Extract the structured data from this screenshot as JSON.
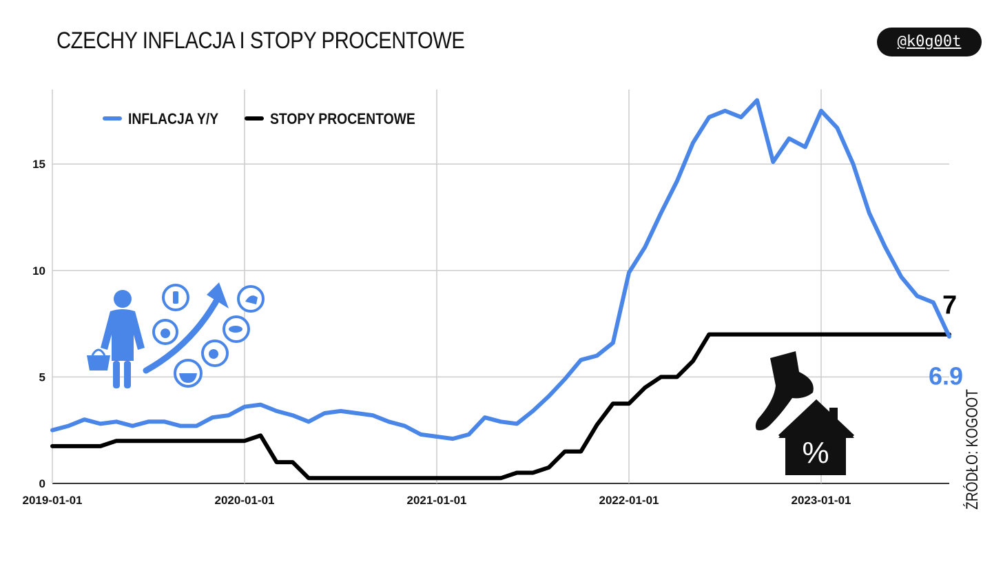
{
  "header": {
    "title": "CZECHY INFLACJA I STOPY PROCENTOWE",
    "handle": "@k0g00t",
    "source": "ŹRÓDŁO: KOGOOT"
  },
  "icons": {
    "shopper": "shopper-with-basket-icon",
    "rising_prices": "rising-food-prices-icon",
    "house": "house-percent-icon",
    "foot": "foot-icon"
  },
  "chart_data": {
    "type": "line",
    "title": "CZECHY INFLACJA I STOPY PROCENTOWE",
    "xlabel": "",
    "ylabel": "",
    "x_start": "2019-01",
    "x_step": "1 month",
    "x_ticks": [
      "2019-01-01",
      "2020-01-01",
      "2021-01-01",
      "2022-01-01",
      "2023-01-01"
    ],
    "y_ticks": [
      0,
      5,
      10,
      15
    ],
    "ylim": [
      0,
      18.5
    ],
    "grid": true,
    "legend_position": "top-left",
    "series": [
      {
        "name": "INFLACJA Y/Y",
        "color": "#4a86e8",
        "values": [
          2.5,
          2.7,
          3.0,
          2.8,
          2.9,
          2.7,
          2.9,
          2.9,
          2.7,
          2.7,
          3.1,
          3.2,
          3.6,
          3.7,
          3.4,
          3.2,
          2.9,
          3.3,
          3.4,
          3.3,
          3.2,
          2.9,
          2.7,
          2.3,
          2.2,
          2.1,
          2.3,
          3.1,
          2.9,
          2.8,
          3.4,
          4.1,
          4.9,
          5.8,
          6.0,
          6.6,
          9.9,
          11.1,
          12.7,
          14.2,
          16.0,
          17.2,
          17.5,
          17.2,
          18.0,
          15.1,
          16.2,
          15.8,
          17.5,
          16.7,
          15.0,
          12.7,
          11.1,
          9.7,
          8.8,
          8.5,
          6.9
        ],
        "end_label": "6.9"
      },
      {
        "name": "STOPY PROCENTOWE",
        "color": "#000000",
        "values": [
          1.75,
          1.75,
          1.75,
          1.75,
          2.0,
          2.0,
          2.0,
          2.0,
          2.0,
          2.0,
          2.0,
          2.0,
          2.0,
          2.25,
          1.0,
          1.0,
          0.25,
          0.25,
          0.25,
          0.25,
          0.25,
          0.25,
          0.25,
          0.25,
          0.25,
          0.25,
          0.25,
          0.25,
          0.25,
          0.5,
          0.5,
          0.75,
          1.5,
          1.5,
          2.75,
          3.75,
          3.75,
          4.5,
          5.0,
          5.0,
          5.75,
          7.0,
          7.0,
          7.0,
          7.0,
          7.0,
          7.0,
          7.0,
          7.0,
          7.0,
          7.0,
          7.0,
          7.0,
          7.0,
          7.0,
          7.0,
          7.0
        ],
        "end_label": "7"
      }
    ]
  }
}
